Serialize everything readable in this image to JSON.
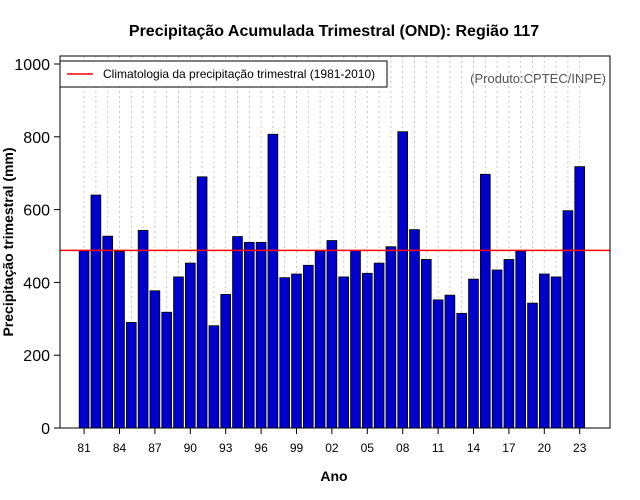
{
  "chart_data": {
    "type": "bar",
    "title": "Precipitação Acumulada Trimestral (OND): Região 117",
    "xlabel": "Ano",
    "ylabel": "Precipitação trimestral (mm)",
    "ylim": [
      0,
      1000
    ],
    "yticks": [
      0,
      200,
      400,
      600,
      800,
      1000
    ],
    "grid": "vertical dotted",
    "categories": [
      "1981",
      "1982",
      "1983",
      "1984",
      "1985",
      "1986",
      "1987",
      "1988",
      "1989",
      "1990",
      "1991",
      "1992",
      "1993",
      "1994",
      "1995",
      "1996",
      "1997",
      "1998",
      "1999",
      "2000",
      "2001",
      "2002",
      "2003",
      "2004",
      "2005",
      "2006",
      "2007",
      "2008",
      "2009",
      "2010",
      "2011",
      "2012",
      "2013",
      "2014",
      "2015",
      "2016",
      "2017",
      "2018",
      "2019",
      "2020",
      "2021",
      "2022",
      "2023"
    ],
    "xtick_labels": [
      {
        "year": "1981",
        "label": "81"
      },
      {
        "year": "1984",
        "label": "84"
      },
      {
        "year": "1987",
        "label": "87"
      },
      {
        "year": "1990",
        "label": "90"
      },
      {
        "year": "1993",
        "label": "93"
      },
      {
        "year": "1996",
        "label": "96"
      },
      {
        "year": "1999",
        "label": "99"
      },
      {
        "year": "2002",
        "label": "02"
      },
      {
        "year": "2005",
        "label": "05"
      },
      {
        "year": "2008",
        "label": "08"
      },
      {
        "year": "2011",
        "label": "11"
      },
      {
        "year": "2014",
        "label": "14"
      },
      {
        "year": "2017",
        "label": "17"
      },
      {
        "year": "2020",
        "label": "20"
      },
      {
        "year": "2023",
        "label": "23"
      }
    ],
    "values": [
      487,
      640,
      527,
      485,
      290,
      543,
      377,
      318,
      415,
      453,
      690,
      281,
      367,
      526,
      510,
      510,
      807,
      413,
      423,
      447,
      486,
      515,
      415,
      487,
      425,
      453,
      498,
      814,
      545,
      463,
      352,
      365,
      315,
      409,
      697,
      434,
      463,
      486,
      343,
      423,
      415,
      597,
      718
    ],
    "climatology": {
      "value": 488,
      "label": "Climatologia da precipitação trimestral (1981-2010)",
      "color": "#ff0000"
    },
    "source_note": "(Produto:CPTEC/INPE)",
    "bar_color": "#0000cd",
    "legend_position": "top-left"
  }
}
